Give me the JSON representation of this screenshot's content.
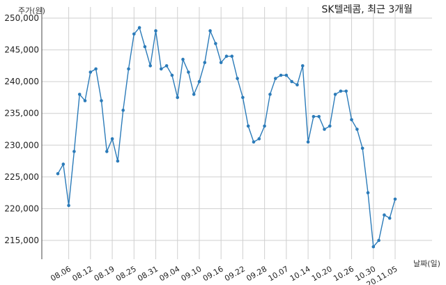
{
  "chart_data": {
    "type": "line",
    "title": "SK텔레콤, 최근 3개월",
    "ylabel": "주가(원)",
    "xlabel": "날짜(일)",
    "ylim": [
      212000,
      250000
    ],
    "yticks": [
      250000,
      245000,
      240000,
      235000,
      230000,
      225000,
      220000,
      215000
    ],
    "ytick_labels": [
      "250,000",
      "245,000",
      "240,000",
      "235,000",
      "230,000",
      "225,000",
      "220,000",
      "215,000"
    ],
    "xtick_labels": [
      "08.06",
      "08.12",
      "08.19",
      "08.25",
      "08.31",
      "09.04",
      "09.10",
      "09.16",
      "09.22",
      "09.28",
      "10.07",
      "10.14",
      "10.20",
      "10.26",
      "10.30",
      "20.11.05"
    ],
    "xtick_index": [
      2,
      6,
      10,
      14,
      18,
      22,
      26,
      30,
      34,
      38,
      42,
      46,
      50,
      54,
      58,
      62
    ],
    "grid": true,
    "series": [
      {
        "name": "",
        "color": "#2b7bb9",
        "values": [
          225500,
          227000,
          220500,
          229000,
          238000,
          237000,
          241500,
          242000,
          237000,
          229000,
          231000,
          227500,
          235500,
          242000,
          247500,
          248500,
          245500,
          242500,
          248000,
          242000,
          242500,
          241000,
          237500,
          243500,
          241500,
          238000,
          240000,
          243000,
          248000,
          246000,
          243000,
          244000,
          244000,
          240500,
          237500,
          233000,
          230500,
          231000,
          233000,
          238000,
          240500,
          241000,
          241000,
          240000,
          239500,
          242500,
          230500,
          234500,
          234500,
          232500,
          233000,
          238000,
          238500,
          238500,
          234000,
          232500,
          229500,
          222500,
          214000,
          215000,
          219000,
          218500,
          221500
        ]
      }
    ]
  }
}
